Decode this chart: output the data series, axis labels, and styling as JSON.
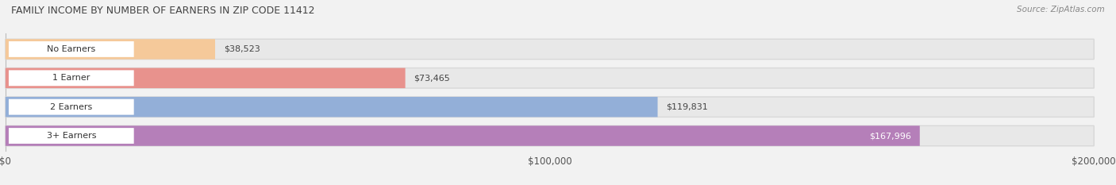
{
  "title": "Family Income by Number of Earners in Zip Code 11412",
  "source": "Source: ZipAtlas.com",
  "categories": [
    "No Earners",
    "1 Earner",
    "2 Earners",
    "3+ Earners"
  ],
  "values": [
    38523,
    73465,
    119831,
    167996
  ],
  "bar_colors": [
    "#f5c99a",
    "#e8928d",
    "#93afd8",
    "#b57fb9"
  ],
  "bar_bg_color": "#e8e8e8",
  "label_colors": [
    "#333333",
    "#333333",
    "#333333",
    "#ffffff"
  ],
  "xlim": [
    0,
    200000
  ],
  "xticks": [
    0,
    100000,
    200000
  ],
  "xtick_labels": [
    "$0",
    "$100,000",
    "$200,000"
  ],
  "value_labels": [
    "$38,523",
    "$73,465",
    "$119,831",
    "$167,996"
  ],
  "figsize": [
    14.06,
    2.33
  ],
  "dpi": 100,
  "bg_color": "#f2f2f2",
  "bar_bg_outer": "#d8d8d8"
}
